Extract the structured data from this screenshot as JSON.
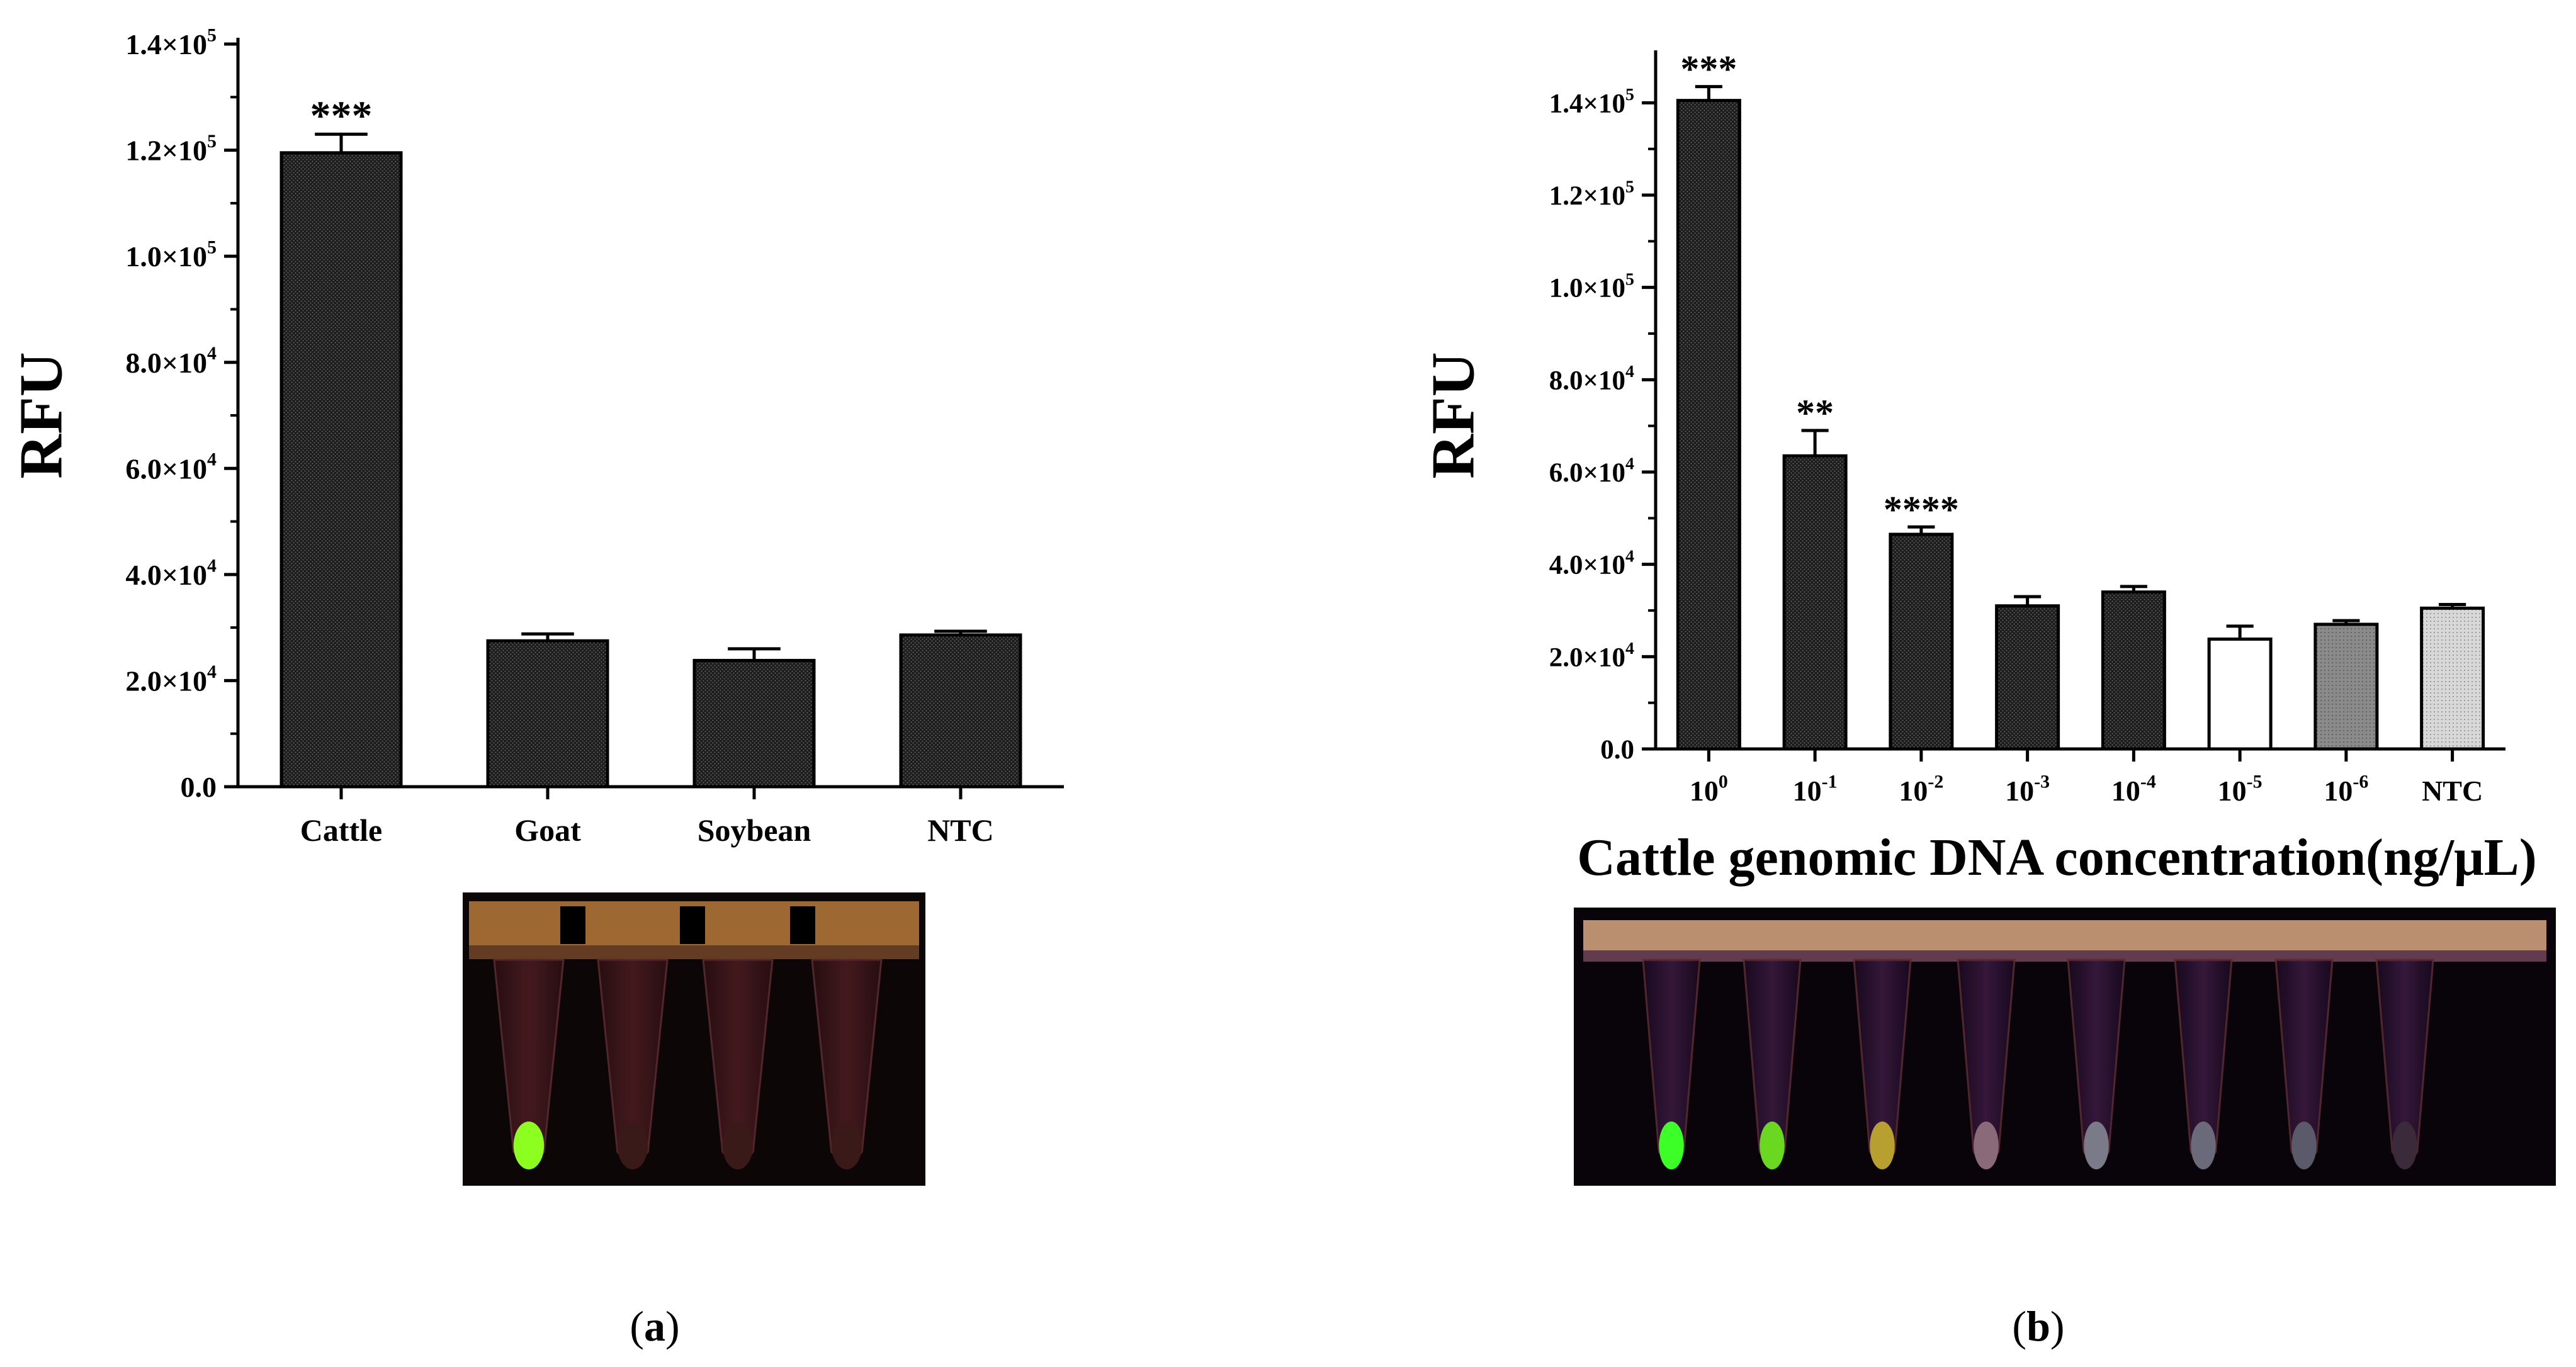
{
  "panels": [
    {
      "label_open": "(",
      "label_letter": "a",
      "label_close": ")"
    },
    {
      "label_open": "(",
      "label_letter": "b",
      "label_close": ")"
    }
  ],
  "colors": {
    "bar_dark": "#2a2a2a",
    "bar_white": "#ffffff",
    "bar_gray": "#7a7a7a",
    "bar_light": "#c8c8c8",
    "axis": "#000000",
    "tube_bg": "#0c0607",
    "tube_green": "#5cff1e"
  },
  "chart_data": [
    {
      "type": "bar",
      "ylabel": "RFU",
      "xlabel": "",
      "ylim": [
        0,
        140000
      ],
      "yticks": [
        {
          "mantissa": "0.0",
          "exp": ""
        },
        {
          "mantissa": "2.0×10",
          "exp": "4"
        },
        {
          "mantissa": "4.0×10",
          "exp": "4"
        },
        {
          "mantissa": "6.0×10",
          "exp": "4"
        },
        {
          "mantissa": "8.0×10",
          "exp": "4"
        },
        {
          "mantissa": "1.0×10",
          "exp": "5"
        },
        {
          "mantissa": "1.2×10",
          "exp": "5"
        },
        {
          "mantissa": "1.4×10",
          "exp": "5"
        }
      ],
      "categories": [
        {
          "base": "Cattle",
          "exp": ""
        },
        {
          "base": "Goat",
          "exp": ""
        },
        {
          "base": "Soybean",
          "exp": ""
        },
        {
          "base": "NTC",
          "exp": ""
        }
      ],
      "values": [
        119500,
        27500,
        23800,
        28600
      ],
      "errors": [
        3500,
        1300,
        2200,
        700
      ],
      "annotations": [
        "***",
        "",
        "",
        ""
      ],
      "fills": [
        "dark",
        "dark",
        "dark",
        "dark"
      ]
    },
    {
      "type": "bar",
      "ylabel": "RFU",
      "xlabel": "Cattle genomic DNA concentration(ng/μL)",
      "ylim": [
        0,
        150000
      ],
      "yticks": [
        {
          "mantissa": "0.0",
          "exp": ""
        },
        {
          "mantissa": "2.0×10",
          "exp": "4"
        },
        {
          "mantissa": "4.0×10",
          "exp": "4"
        },
        {
          "mantissa": "6.0×10",
          "exp": "4"
        },
        {
          "mantissa": "8.0×10",
          "exp": "4"
        },
        {
          "mantissa": "1.0×10",
          "exp": "5"
        },
        {
          "mantissa": "1.2×10",
          "exp": "5"
        },
        {
          "mantissa": "1.4×10",
          "exp": "5"
        }
      ],
      "categories": [
        {
          "base": "10",
          "exp": "0"
        },
        {
          "base": "10",
          "exp": "-1"
        },
        {
          "base": "10",
          "exp": "-2"
        },
        {
          "base": "10",
          "exp": "-3"
        },
        {
          "base": "10",
          "exp": "-4"
        },
        {
          "base": "10",
          "exp": "-5"
        },
        {
          "base": "10",
          "exp": "-6"
        },
        {
          "base": "NTC",
          "exp": ""
        }
      ],
      "values": [
        140500,
        63500,
        46500,
        31000,
        34000,
        23800,
        27000,
        30500
      ],
      "errors": [
        3000,
        5500,
        1600,
        2000,
        1200,
        2800,
        800,
        800
      ],
      "annotations": [
        "***",
        "**",
        "****",
        "",
        "",
        "",
        "",
        ""
      ],
      "fills": [
        "dark",
        "dark",
        "dark",
        "dark",
        "dark",
        "white",
        "gray",
        "light"
      ]
    }
  ]
}
